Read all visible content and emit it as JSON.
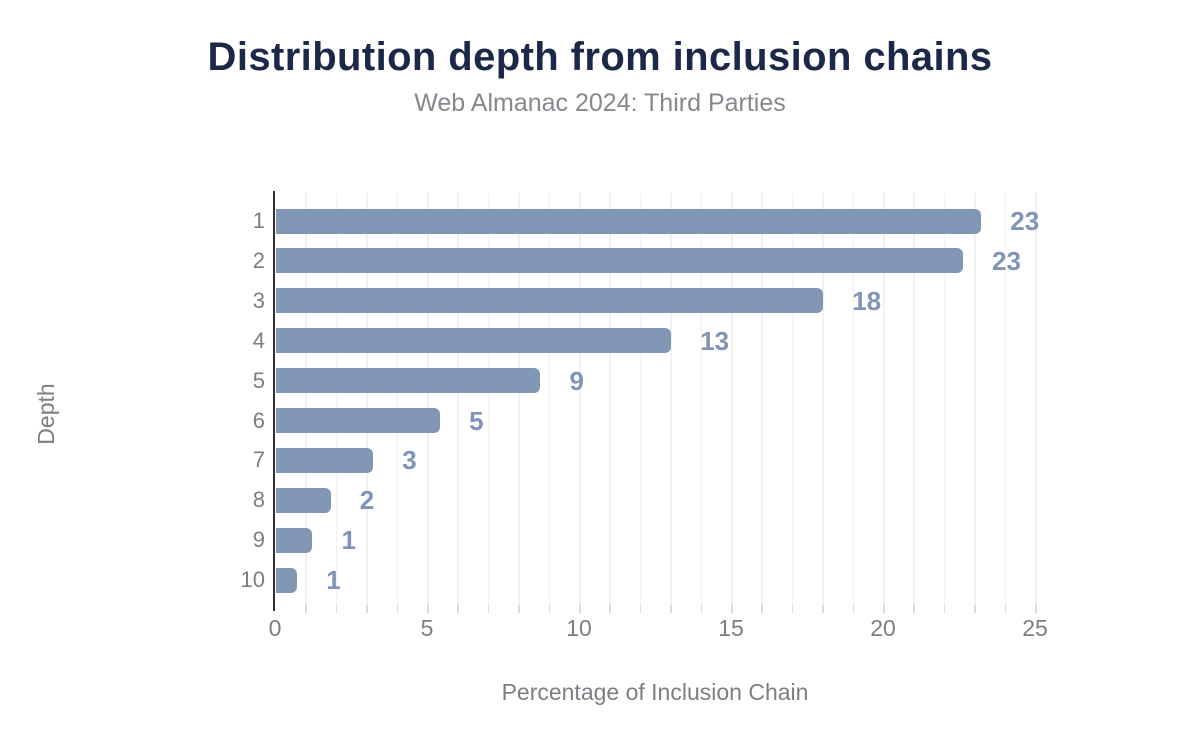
{
  "header": {
    "title": "Distribution depth from inclusion chains",
    "subtitle": "Web Almanac 2024: Third Parties"
  },
  "chart_data": {
    "type": "bar",
    "orientation": "horizontal",
    "title": "Distribution depth from inclusion chains",
    "subtitle": "Web Almanac 2024: Third Parties",
    "categories": [
      "1",
      "2",
      "3",
      "4",
      "5",
      "6",
      "7",
      "8",
      "9",
      "10"
    ],
    "values": [
      23.2,
      22.6,
      18.0,
      13.0,
      8.7,
      5.4,
      3.2,
      1.8,
      1.2,
      0.7
    ],
    "value_labels": [
      "23",
      "23",
      "18",
      "13",
      "9",
      "5",
      "3",
      "2",
      "1",
      "1"
    ],
    "xlabel": "Percentage of Inclusion Chain",
    "ylabel": "Depth",
    "xlim": [
      0,
      25
    ],
    "xticks": [
      0,
      5,
      10,
      15,
      20,
      25
    ],
    "grid": "vertical, minor lines every 1 unit",
    "legend": "none"
  },
  "colors": {
    "background": "#ffffff",
    "bar_fill": "#8296b6",
    "value_label": "#7f94b6",
    "title": "#1b2847",
    "subtitle": "#85898e",
    "axis_text": "#7b7f83",
    "axis_line": "#2e2e2e",
    "gridline": "#f1f1f1",
    "tick": "#dcdcdc"
  }
}
